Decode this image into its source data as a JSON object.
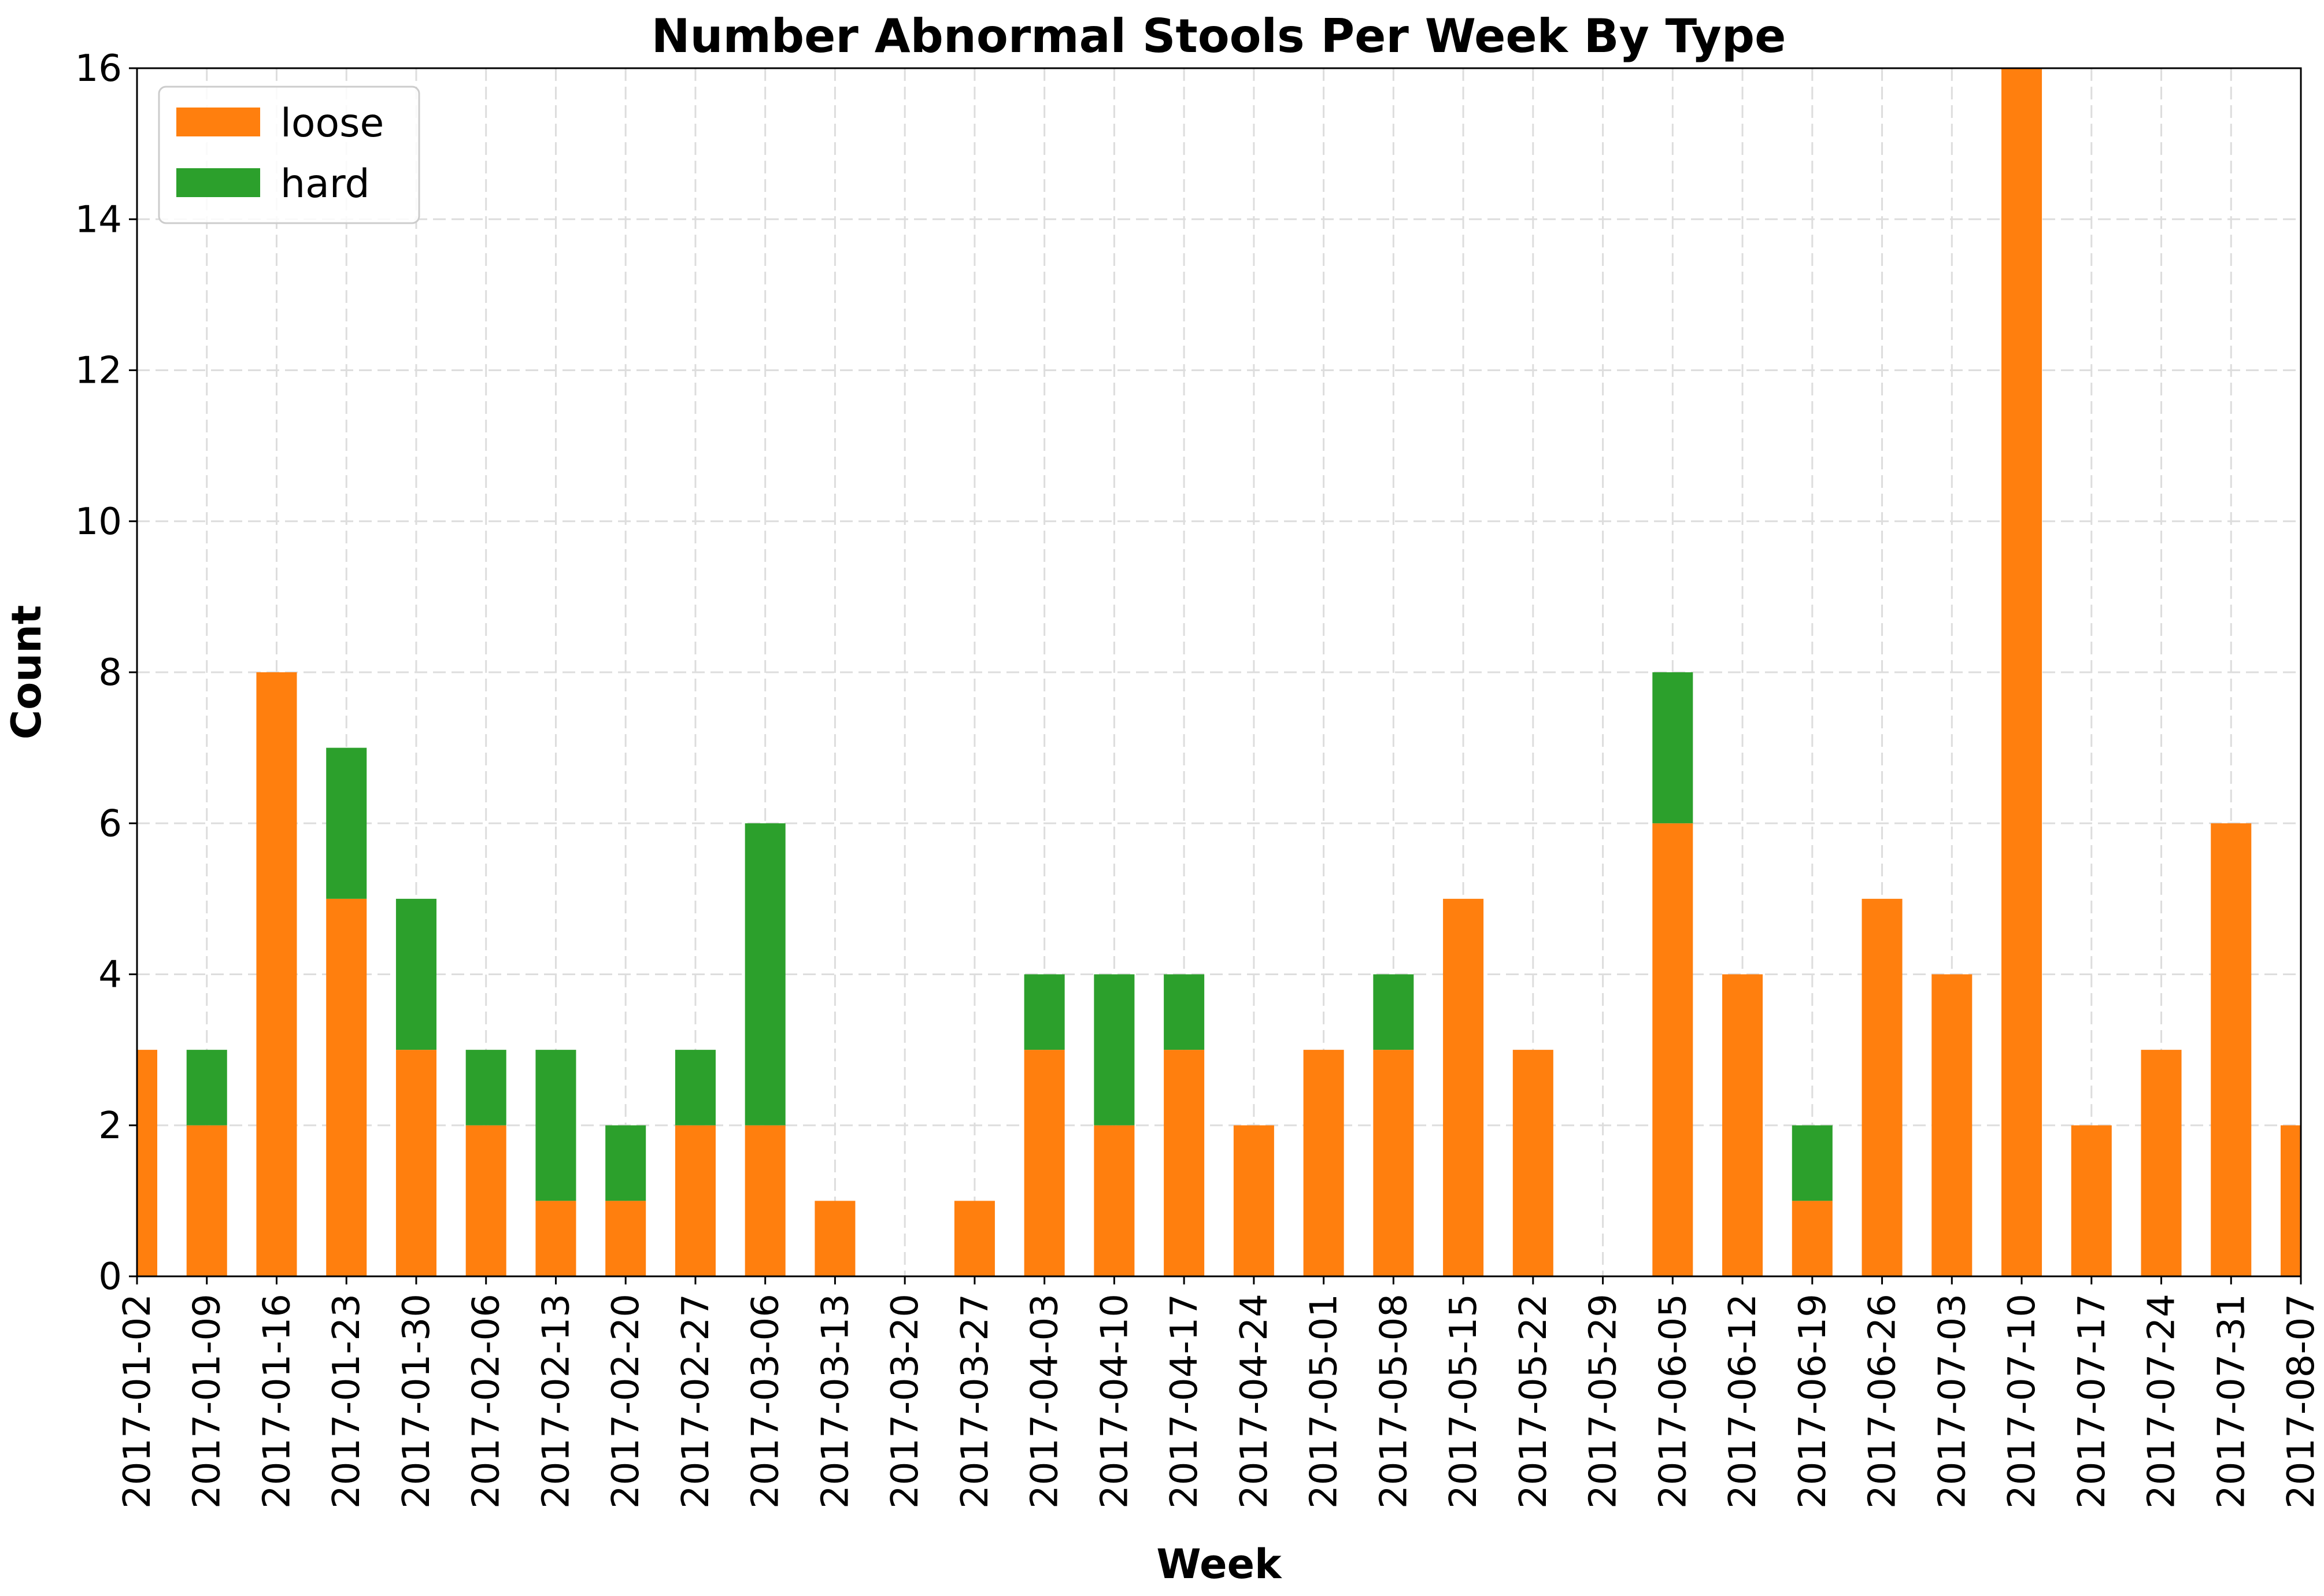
{
  "chart_data": {
    "type": "bar",
    "stacked": true,
    "title": "Number Abnormal Stools Per Week By Type",
    "xlabel": "Week",
    "ylabel": "Count",
    "ylim": [
      0,
      16
    ],
    "yticks": [
      0,
      2,
      4,
      6,
      8,
      10,
      12,
      14,
      16
    ],
    "grid": true,
    "legend": {
      "placement": "top-left"
    },
    "categories": [
      "2017-01-02",
      "2017-01-09",
      "2017-01-16",
      "2017-01-23",
      "2017-01-30",
      "2017-02-06",
      "2017-02-13",
      "2017-02-20",
      "2017-02-27",
      "2017-03-06",
      "2017-03-13",
      "2017-03-20",
      "2017-03-27",
      "2017-04-03",
      "2017-04-10",
      "2017-04-17",
      "2017-04-24",
      "2017-05-01",
      "2017-05-08",
      "2017-05-15",
      "2017-05-22",
      "2017-05-29",
      "2017-06-05",
      "2017-06-12",
      "2017-06-19",
      "2017-06-26",
      "2017-07-03",
      "2017-07-10",
      "2017-07-17",
      "2017-07-24",
      "2017-07-31",
      "2017-08-07"
    ],
    "series": [
      {
        "name": "loose",
        "color": "#ff7f0e",
        "values": [
          3,
          2,
          8,
          5,
          3,
          2,
          1,
          1,
          2,
          2,
          1,
          0,
          1,
          3,
          2,
          3,
          2,
          3,
          3,
          5,
          3,
          0,
          6,
          4,
          1,
          5,
          4,
          16,
          2,
          3,
          6,
          2
        ]
      },
      {
        "name": "hard",
        "color": "#2ca02c",
        "values": [
          0,
          1,
          0,
          2,
          2,
          1,
          2,
          1,
          1,
          4,
          0,
          0,
          0,
          1,
          2,
          1,
          0,
          0,
          1,
          0,
          0,
          0,
          2,
          0,
          1,
          0,
          0,
          0,
          0,
          0,
          0,
          0
        ]
      }
    ]
  }
}
